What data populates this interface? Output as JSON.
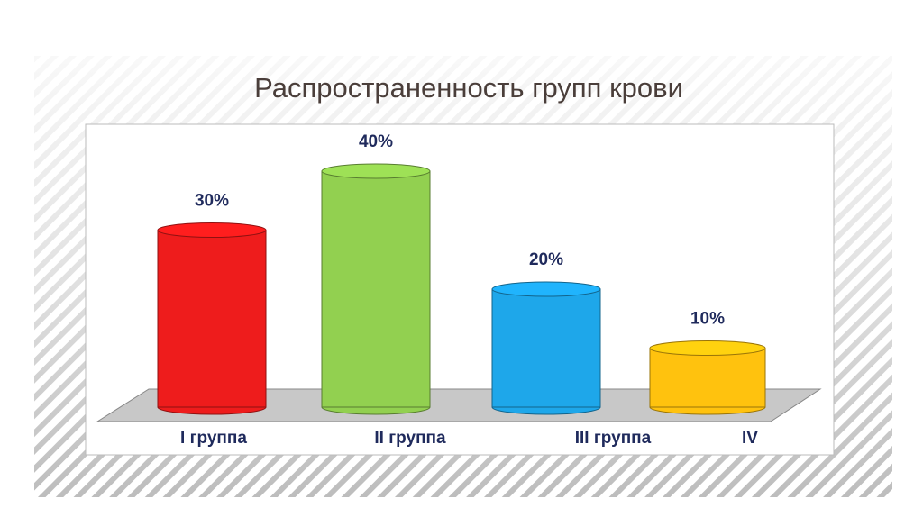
{
  "chart_data": {
    "type": "bar",
    "title": "Распространенность групп крови",
    "categories": [
      "I группа",
      "II группа",
      "III группа",
      "IV"
    ],
    "values": [
      30,
      40,
      20,
      10
    ],
    "value_labels": [
      "30%",
      "40%",
      "20%",
      "10%"
    ],
    "colors": [
      "#ee1c1c",
      "#92d050",
      "#1ea7ea",
      "#ffc20e"
    ]
  }
}
